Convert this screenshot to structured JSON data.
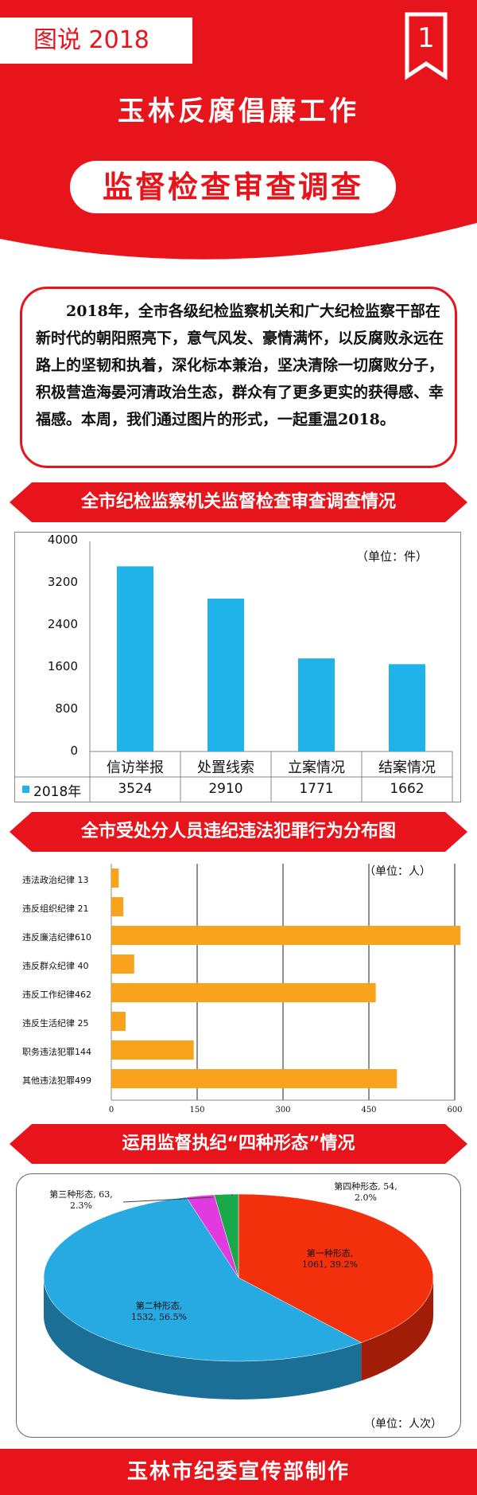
{
  "header": {
    "tag": "图说 2018",
    "page_number": "1",
    "title": "玉林反腐倡廉工作",
    "subtitle": "监督检查审查调查"
  },
  "intro": {
    "text": "2018年，全市各级纪检监察机关和广大纪检监察干部在新时代的朝阳照亮下，意气风发、豪情满怀，以反腐败永远在路上的坚韧和执着，深化标本兼治，坚决清除一切腐败分子，积极营造海晏河清政治生态，群众有了更多更实的获得感、幸福感。本周，我们通过图片的形式，一起重温2018。"
  },
  "sections": {
    "s1": "全市纪检监察机关监督检查审查调查情况",
    "s2": "全市受处分人员违纪违法犯罪行为分布图",
    "s3": "运用监督执纪“四种形态”情况"
  },
  "colors": {
    "red": "#e8141b",
    "bar_blue": "#1fb3ea",
    "bar_orange": "#f8a31b",
    "pie_red": "#f2300c",
    "pie_blue": "#27a9e1",
    "pie_magenta": "#e13ae0",
    "pie_green": "#1aa84a"
  },
  "chart_data": [
    {
      "type": "bar",
      "unit": "（单位：件）",
      "categories": [
        "信访举报",
        "处置线索",
        "立案情况",
        "结案情况"
      ],
      "series": [
        {
          "name": "2018年",
          "values": [
            3524,
            2910,
            1771,
            1662
          ]
        }
      ],
      "yticks": [
        "0",
        "800",
        "1600",
        "2400",
        "3200",
        "4000"
      ],
      "ylim": [
        0,
        4000
      ],
      "value_labels": [
        "3524",
        "2910",
        "1771",
        "1662"
      ],
      "table_below": true
    },
    {
      "type": "bar",
      "orientation": "horizontal",
      "unit": "（单位：人）",
      "categories": [
        "违法政治纪律 13",
        "违反组织纪律 21",
        "违反廉洁纪律610",
        "违反群众纪律 40",
        "违反工作纪律462",
        "违反生活纪律 25",
        "职务违法犯罪144",
        "其他违法犯罪499"
      ],
      "values": [
        13,
        21,
        610,
        40,
        462,
        25,
        144,
        499
      ],
      "xticks": [
        "0",
        "150",
        "300",
        "450",
        "600"
      ],
      "xlim": [
        0,
        600
      ],
      "grid": true
    },
    {
      "type": "pie",
      "style": "3d",
      "unit": "（单位：人次）",
      "slices": [
        {
          "name": "第一种形态",
          "value": 1061,
          "percent": "39.2%",
          "label": "第一种形态,",
          "label2": "1061, 39.2%"
        },
        {
          "name": "第二种形态",
          "value": 1532,
          "percent": "56.5%",
          "label": "第二种形态,",
          "label2": "1532, 56.5%"
        },
        {
          "name": "第三种形态",
          "value": 63,
          "percent": "2.3%",
          "label": "第三种形态, 63,",
          "label2": "2.3%"
        },
        {
          "name": "第四种形态",
          "value": 54,
          "percent": "2.0%",
          "label": "第四种形态, 54,",
          "label2": "2.0%"
        }
      ]
    }
  ],
  "footer": {
    "text": "玉林市纪委宣传部制作"
  }
}
